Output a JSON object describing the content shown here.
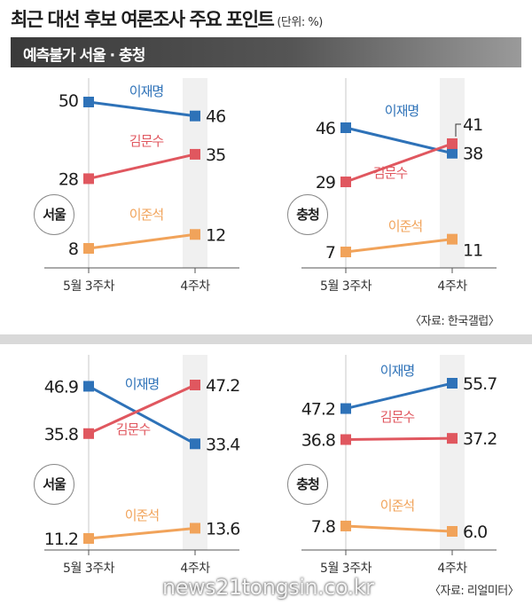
{
  "header": {
    "title": "최근 대선 후보 여론조사 주요 포인트",
    "unit": "(단위: %)",
    "banner": "예측불가 서울 · 충청"
  },
  "sources": [
    "〈자료: 한국갤럽〉",
    "〈자료: 리얼미터〉"
  ],
  "watermark": "news21tongsin.co.kr",
  "colors": {
    "이재명": "#2e72b8",
    "김문수": "#e0575f",
    "이준석": "#f1a35a"
  },
  "chart_data": [
    {
      "type": "line",
      "panel_label": "서울",
      "source": "〈자료: 한국갤럽〉",
      "x": [
        "5월 3주차",
        "4주차"
      ],
      "series": [
        {
          "name": "이재명",
          "values": [
            50,
            46
          ],
          "value_labels": [
            "50",
            "46"
          ]
        },
        {
          "name": "김문수",
          "values": [
            28,
            35
          ],
          "value_labels": [
            "28",
            "35"
          ]
        },
        {
          "name": "이준석",
          "values": [
            8,
            12
          ],
          "value_labels": [
            "8",
            "12"
          ]
        }
      ]
    },
    {
      "type": "line",
      "panel_label": "충청",
      "source": "〈자료: 한국갤럽〉",
      "x": [
        "5월 3주차",
        "4주차"
      ],
      "series": [
        {
          "name": "이재명",
          "values": [
            46,
            38
          ],
          "value_labels": [
            "46",
            "38"
          ]
        },
        {
          "name": "김문수",
          "values": [
            29,
            41
          ],
          "value_labels": [
            "29",
            "41"
          ]
        },
        {
          "name": "이준석",
          "values": [
            7,
            11
          ],
          "value_labels": [
            "7",
            "11"
          ]
        }
      ]
    },
    {
      "type": "line",
      "panel_label": "서울",
      "source": "〈자료: 리얼미터〉",
      "x": [
        "5월 3주차",
        "4주차"
      ],
      "series": [
        {
          "name": "이재명",
          "values": [
            46.9,
            33.4
          ],
          "value_labels": [
            "46.9",
            "33.4"
          ]
        },
        {
          "name": "김문수",
          "values": [
            35.8,
            47.2
          ],
          "value_labels": [
            "35.8",
            "47.2"
          ]
        },
        {
          "name": "이준석",
          "values": [
            11.2,
            13.6
          ],
          "value_labels": [
            "11.2",
            "13.6"
          ]
        }
      ]
    },
    {
      "type": "line",
      "panel_label": "충청",
      "source": "〈자료: 리얼미터〉",
      "x": [
        "5월 3주차",
        "4주차"
      ],
      "series": [
        {
          "name": "이재명",
          "values": [
            47.2,
            55.7
          ],
          "value_labels": [
            "47.2",
            "55.7"
          ]
        },
        {
          "name": "김문수",
          "values": [
            36.8,
            37.2
          ],
          "value_labels": [
            "36.8",
            "37.2"
          ]
        },
        {
          "name": "이준석",
          "values": [
            7.8,
            6.0
          ],
          "value_labels": [
            "7.8",
            "6.0"
          ]
        }
      ]
    }
  ]
}
